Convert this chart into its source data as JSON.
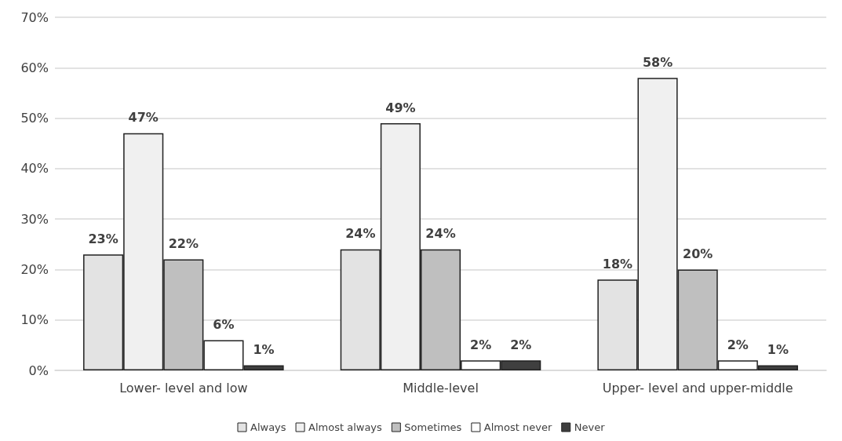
{
  "chart_data": {
    "type": "bar",
    "categories": [
      "Lower- level and low",
      "Middle-level",
      "Upper- level and upper-middle"
    ],
    "series": [
      {
        "name": "Always",
        "color": "#e3e3e3",
        "values": [
          23,
          24,
          18
        ],
        "value_labels": [
          "23%",
          "24%",
          "18%"
        ]
      },
      {
        "name": "Almost always",
        "color": "#f0f0f0",
        "values": [
          47,
          49,
          58
        ],
        "value_labels": [
          "47%",
          "49%",
          "58%"
        ]
      },
      {
        "name": "Sometimes",
        "color": "#bfbfbf",
        "values": [
          22,
          24,
          20
        ],
        "value_labels": [
          "22%",
          "24%",
          "20%"
        ]
      },
      {
        "name": "Almost never",
        "color": "#ffffff",
        "values": [
          6,
          2,
          2
        ],
        "value_labels": [
          "6%",
          "2%",
          "2%"
        ]
      },
      {
        "name": "Never",
        "color": "#3f3f3f",
        "values": [
          1,
          2,
          1
        ],
        "value_labels": [
          "1%",
          "2%",
          "1%"
        ]
      }
    ],
    "ylim": [
      0,
      70
    ],
    "yticks": [
      {
        "value": 0,
        "label": "0%"
      },
      {
        "value": 10,
        "label": "10%"
      },
      {
        "value": 20,
        "label": "20%"
      },
      {
        "value": 30,
        "label": "30%"
      },
      {
        "value": 40,
        "label": "40%"
      },
      {
        "value": 50,
        "label": "50%"
      },
      {
        "value": 60,
        "label": "60%"
      },
      {
        "value": 70,
        "label": "70%"
      }
    ],
    "grid": "y",
    "legend": "bottom"
  }
}
